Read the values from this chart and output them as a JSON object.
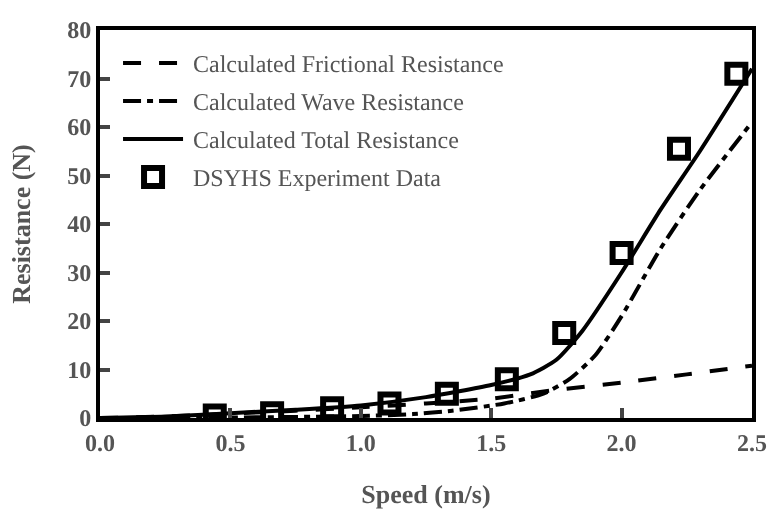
{
  "chart_data": {
    "type": "line",
    "xlabel": "Speed (m/s)",
    "ylabel": "Resistance (N)",
    "xlim": [
      0,
      2.5
    ],
    "xticks": [
      {
        "value": 0,
        "label": "0.0"
      },
      0.5,
      {
        "value": 1,
        "label": "1.0"
      },
      1.5,
      {
        "value": 2,
        "label": "2.0"
      },
      2.5
    ],
    "ylim": [
      0,
      80
    ],
    "yticks": [
      0,
      10,
      20,
      30,
      40,
      50,
      60,
      70,
      80
    ],
    "legend": "top left",
    "series": [
      {
        "name": "Calculated Frictional Resistance",
        "color": "#000000",
        "line_style": "dashed",
        "marker": "none",
        "x": [
          0,
          0.25,
          0.5,
          0.75,
          1.0,
          1.25,
          1.5,
          1.75,
          2.0,
          2.25,
          2.5
        ],
        "values": [
          0,
          0.3,
          0.9,
          1.5,
          2.2,
          3.0,
          4.0,
          5.8,
          7.3,
          9.0,
          10.8
        ]
      },
      {
        "name": "Calculated Wave Resistance",
        "color": "#000000",
        "line_style": "dashdot",
        "marker": "none",
        "x": [
          0,
          0.5,
          1.0,
          1.2,
          1.35,
          1.55,
          1.7,
          1.8,
          1.9,
          2.0,
          2.15,
          2.3,
          2.5
        ],
        "values": [
          0,
          0.1,
          0.4,
          0.8,
          1.5,
          3.0,
          5.0,
          8.0,
          13,
          21,
          35,
          47,
          61
        ]
      },
      {
        "name": "Calculated Total Resistance",
        "color": "#000000",
        "line_style": "solid",
        "marker": "none",
        "x": [
          0,
          0.25,
          0.5,
          0.75,
          1.0,
          1.25,
          1.5,
          1.65,
          1.75,
          1.85,
          2.0,
          2.15,
          2.3,
          2.5
        ],
        "values": [
          0,
          0.3,
          1.0,
          1.7,
          2.6,
          4.3,
          6.8,
          9.0,
          12,
          18,
          30,
          43,
          55,
          72
        ]
      },
      {
        "name": "DSYHS Experiment Data",
        "type": "scatter",
        "color": "#000000",
        "marker": "square",
        "x": [
          0.44,
          0.66,
          0.89,
          1.11,
          1.33,
          1.56,
          1.78,
          2.0,
          2.22,
          2.44
        ],
        "values": [
          0.5,
          1,
          2,
          3,
          5,
          8,
          17.5,
          34,
          55.5,
          71
        ]
      }
    ]
  }
}
